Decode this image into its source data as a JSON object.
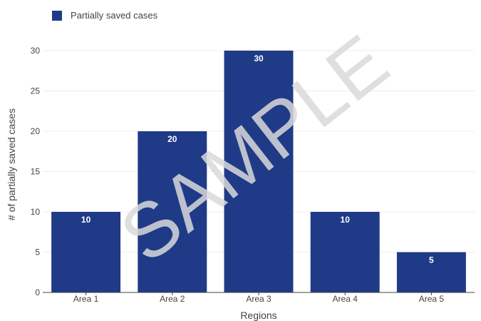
{
  "legend": {
    "label": "Partially saved cases"
  },
  "watermark": {
    "text": "SAMPLE"
  },
  "chart_data": {
    "type": "bar",
    "title": "",
    "xlabel": "Regions",
    "ylabel": "# of partially saved cases",
    "categories": [
      "Area 1",
      "Area 2",
      "Area 3",
      "Area 4",
      "Area 5"
    ],
    "series": [
      {
        "name": "Partially saved cases",
        "values": [
          10,
          20,
          30,
          10,
          5
        ]
      }
    ],
    "ylim": [
      0,
      30
    ],
    "yticks": [
      0,
      5,
      10,
      15,
      20,
      25,
      30
    ],
    "grid": true,
    "legend_position": "top-left",
    "bar_color": "#1f3a86",
    "grid_color": "#eeeeee",
    "axis_color": "#444444",
    "text_color": "#444444",
    "label_color": "#ffffff",
    "watermark_color": "#d9d9d9"
  }
}
